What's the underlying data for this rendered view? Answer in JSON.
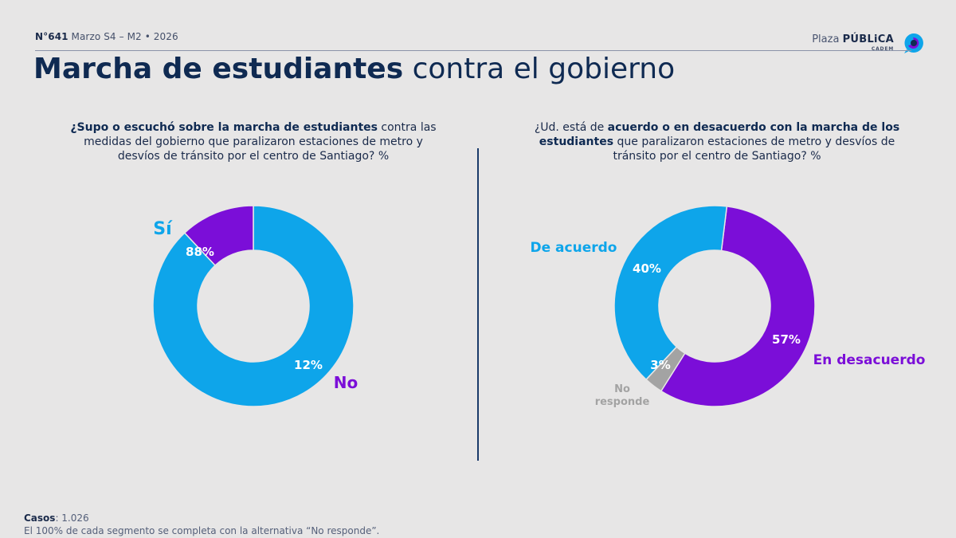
{
  "header": {
    "issue": "N°641",
    "date": "Marzo S4 – M2 • 2026",
    "title_strong": "Marcha de estudiantes",
    "title_rest": " contra el gobierno"
  },
  "brand": {
    "name_light": "Plaza ",
    "name_bold": "PÚBLiCA",
    "sub": "CADEM"
  },
  "colors": {
    "blue": "#0ea5ea",
    "purple": "#7b0ed8",
    "gray": "#a3a3a3",
    "navy": "#0f2a52"
  },
  "questions": {
    "left_bold": "¿Supo o escuchó sobre la marcha de estudiantes",
    "left_rest": " contra las medidas del gobierno que paralizaron estaciones de metro y desvíos de tránsito por el centro de Santiago? %",
    "right_pre": "¿Ud. está de ",
    "right_bold": "acuerdo o en desacuerdo con la marcha de los estudiantes",
    "right_rest": " que paralizaron estaciones de metro y desvíos de tránsito por el centro de Santiago? %"
  },
  "chart_data": [
    {
      "type": "pie",
      "donut": true,
      "categories": [
        "Sí",
        "No"
      ],
      "values": [
        88,
        12
      ],
      "value_labels": [
        "88%",
        "12%"
      ],
      "colors": [
        "#0ea5ea",
        "#7b0ed8"
      ]
    },
    {
      "type": "pie",
      "donut": true,
      "categories": [
        "En desacuerdo",
        "No responde",
        "De acuerdo"
      ],
      "values": [
        57,
        3,
        40
      ],
      "value_labels": [
        "57%",
        "3%",
        "40%"
      ],
      "colors": [
        "#7b0ed8",
        "#a3a3a3",
        "#0ea5ea"
      ]
    }
  ],
  "footer": {
    "cases_label": "Casos",
    "cases_value": ": 1.026",
    "note": "El 100% de cada segmento se completa con la alternativa “No responde”."
  }
}
